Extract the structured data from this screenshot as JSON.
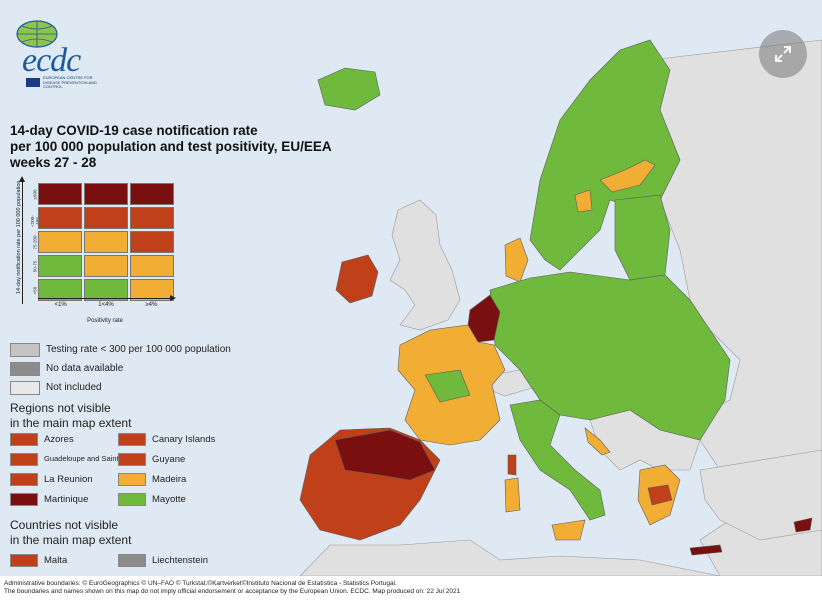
{
  "logo": {
    "wordmark": "ecdc",
    "agency": "EUROPEAN CENTRE FOR DISEASE PREVENTION AND CONTROL"
  },
  "title": {
    "line1": "14-day COVID-19 case notification rate",
    "line2": "per 100 000 population and test positivity, EU/EEA",
    "line3": "weeks 27 - 28"
  },
  "matrix": {
    "y_label": "14-day notification rate per 100 000 population",
    "x_label": "Positivity rate",
    "columns": [
      "<1%",
      "1<4%",
      "≥4%"
    ],
    "rows": [
      "≥500",
      "<200-499",
      "75-200",
      "50-75",
      "<50"
    ],
    "cells": [
      [
        "#7a0f0f",
        "#7a0f0f",
        "#7a0f0f"
      ],
      [
        "#c0401a",
        "#c0401a",
        "#c0401a"
      ],
      [
        "#f2ae34",
        "#f2ae34",
        "#c0401a"
      ],
      [
        "#6fb93d",
        "#f2ae34",
        "#f2ae34"
      ],
      [
        "#6fb93d",
        "#6fb93d",
        "#f2ae34"
      ]
    ]
  },
  "legend": {
    "testing": {
      "label": "Testing rate < 300 per 100 000 population",
      "color": "#c4c4c4"
    },
    "no_data": {
      "label": "No data available",
      "color": "#8c8c8c"
    },
    "not_included": {
      "label": "Not included",
      "color": "#e8e8e8"
    }
  },
  "regions_heading": {
    "line1": "Regions not visible",
    "line2": "in the main map extent"
  },
  "regions": [
    {
      "name": "Azores",
      "color": "#c0401a"
    },
    {
      "name": "Canary Islands",
      "color": "#c0401a"
    },
    {
      "name": "Guadeloupe and Saint Martin",
      "color": "#c0401a",
      "small": true
    },
    {
      "name": "Guyane",
      "color": "#c0401a"
    },
    {
      "name": "La Reunion",
      "color": "#c0401a"
    },
    {
      "name": "Madeira",
      "color": "#f2ae34"
    },
    {
      "name": "Martinique",
      "color": "#7a0f0f"
    },
    {
      "name": "Mayotte",
      "color": "#6fb93d"
    }
  ],
  "countries_heading": {
    "line1": "Countries not visible",
    "line2": "in the main map extent"
  },
  "countries": [
    {
      "name": "Malta",
      "color": "#c0401a"
    },
    {
      "name": "Liechtenstein",
      "color": "#8c8c8c"
    }
  ],
  "footer": {
    "line1": "Administrative boundaries: © EuroGeographics © UN–FAO © Turkstat.©Kartverket©Instituto Nacional de Estatística - Statistics Portugal.",
    "line2": "The boundaries and names shown on this map do not imply official endorsement or acceptance by the European Union. ECDC. Map produced on: 22 Jul 2021"
  },
  "map_colors": {
    "sea": "#dfe9f3",
    "green": "#6fb93d",
    "amber": "#f2ae34",
    "red": "#c0401a",
    "dark_red": "#7a0f0f",
    "not_included": "#e0e0e0",
    "borders": "#5d5d5d"
  },
  "icons": {
    "expand": "expand-icon"
  }
}
